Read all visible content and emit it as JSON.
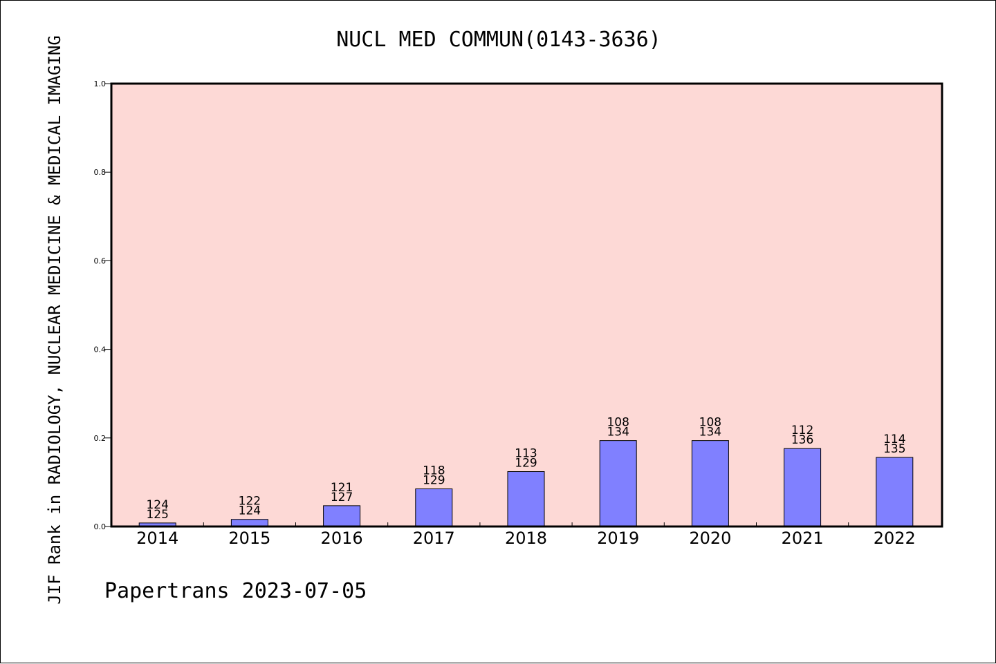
{
  "chart_data": {
    "type": "bar",
    "title": "NUCL MED COMMUN(0143-3636)",
    "ylabel": "JIF Rank in RADIOLOGY, NUCLEAR MEDICINE & MEDICAL IMAGING",
    "xlabel": "",
    "categories": [
      "2014",
      "2015",
      "2016",
      "2017",
      "2018",
      "2019",
      "2020",
      "2021",
      "2022"
    ],
    "values": [
      0.008,
      0.016,
      0.047,
      0.085,
      0.124,
      0.194,
      0.194,
      0.176,
      0.156
    ],
    "labels_top": [
      "124",
      "122",
      "121",
      "118",
      "113",
      "108",
      "108",
      "112",
      "114"
    ],
    "labels_bottom": [
      "125",
      "124",
      "127",
      "129",
      "129",
      "134",
      "134",
      "136",
      "135"
    ],
    "ylim": [
      0,
      1.0
    ],
    "yticks": [
      "0.0",
      "0.2",
      "0.4",
      "0.6",
      "0.8",
      "1.0"
    ],
    "grid": false,
    "colors": {
      "plot_background": "#fdd9d6",
      "bar_fill": "#8080ff",
      "bar_stroke": "#000000"
    }
  },
  "footer": {
    "watermark": "Papertrans 2023-07-05"
  }
}
